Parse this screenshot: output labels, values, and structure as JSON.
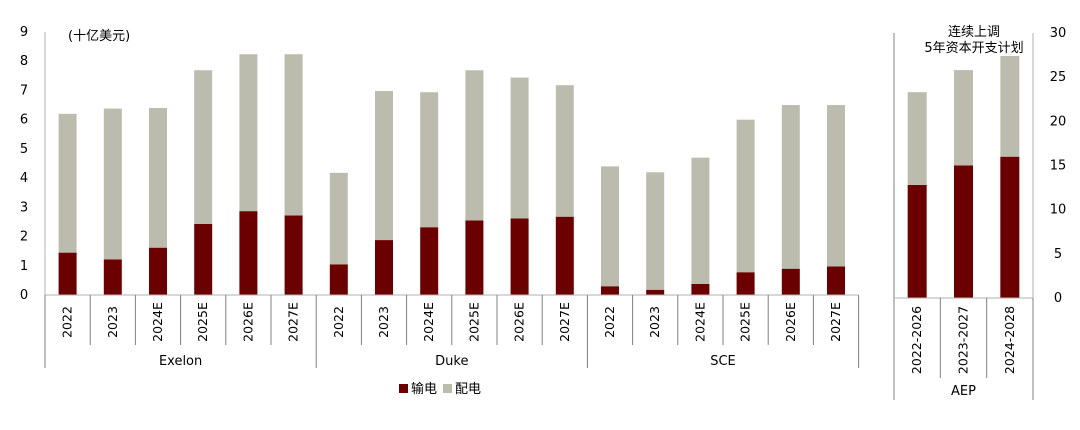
{
  "colors": {
    "transmission": "#6b0000",
    "distribution": "#bcbcae"
  },
  "legend": {
    "transmission": "输电",
    "distribution": "配电"
  },
  "chart_data": [
    {
      "type": "bar",
      "stacked": true,
      "unit_label": "(十亿美元)",
      "ylim": [
        0,
        9
      ],
      "yticks": [
        0,
        1,
        2,
        3,
        4,
        5,
        6,
        7,
        8,
        9
      ],
      "grid": false,
      "legend_position": "bottom-center",
      "groups": [
        {
          "name": "Exelon",
          "categories": [
            "2022",
            "2023",
            "2024E",
            "2025E",
            "2026E",
            "2027E"
          ],
          "series": [
            {
              "name": "输电",
              "values": [
                1.45,
                1.22,
                1.62,
                2.43,
                2.87,
                2.72
              ]
            },
            {
              "name": "配电",
              "values": [
                4.75,
                5.16,
                4.78,
                5.26,
                5.37,
                5.52
              ]
            }
          ]
        },
        {
          "name": "Duke",
          "categories": [
            "2022",
            "2023",
            "2024E",
            "2025E",
            "2026E",
            "2027E"
          ],
          "series": [
            {
              "name": "输电",
              "values": [
                1.05,
                1.88,
                2.32,
                2.55,
                2.62,
                2.68
              ]
            },
            {
              "name": "配电",
              "values": [
                3.13,
                5.1,
                4.62,
                5.14,
                4.82,
                4.5
              ]
            }
          ]
        },
        {
          "name": "SCE",
          "categories": [
            "2022",
            "2023",
            "2024E",
            "2025E",
            "2026E",
            "2027E"
          ],
          "series": [
            {
              "name": "输电",
              "values": [
                0.3,
                0.18,
                0.38,
                0.78,
                0.9,
                0.98
              ]
            },
            {
              "name": "配电",
              "values": [
                4.1,
                4.02,
                4.32,
                5.22,
                5.6,
                5.52
              ]
            }
          ]
        }
      ]
    },
    {
      "type": "bar",
      "stacked": true,
      "title": [
        "连续上调",
        "5年资本开支计划"
      ],
      "ylim": [
        0,
        30
      ],
      "yticks": [
        0,
        5,
        10,
        15,
        20,
        25,
        30
      ],
      "grid": false,
      "group": "AEP",
      "categories": [
        "2022-2026",
        "2023-2027",
        "2024-2028"
      ],
      "series": [
        {
          "name": "输电",
          "values": [
            12.8,
            15.0,
            16.0
          ]
        },
        {
          "name": "配电",
          "values": [
            10.5,
            10.8,
            11.4
          ]
        }
      ]
    }
  ]
}
